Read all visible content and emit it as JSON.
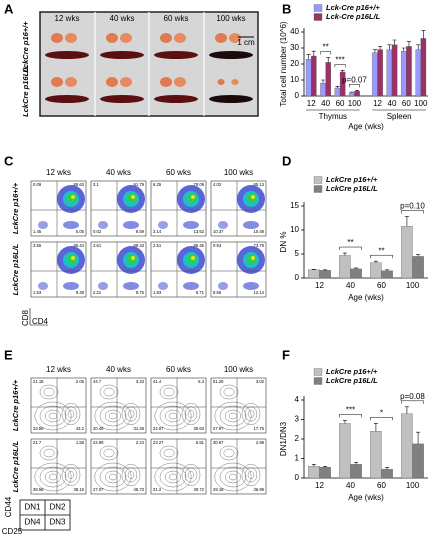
{
  "panels": {
    "labels": [
      "A",
      "B",
      "C",
      "D",
      "E",
      "F"
    ]
  },
  "panel_a": {
    "columns": [
      "12 wks",
      "40 wks",
      "60 wks",
      "100 wks"
    ],
    "rows": [
      "LckCre p16+/+",
      "LckCre p16L/L"
    ],
    "scale": "1 cm"
  },
  "panel_c": {
    "columns": [
      "12 wks",
      "40 wks",
      "60 wks",
      "100 wks"
    ],
    "rows": [
      "LckCre p16+/+",
      "LckCre p16L/L"
    ],
    "x_axis": "CD4",
    "y_axis": "CD8",
    "quadrants": [
      [
        [
          "0.09",
          "85.63",
          "1.45",
          "5.05"
        ],
        [
          "3.1",
          "91.79",
          "0.02",
          "8.59"
        ],
        [
          "6.25",
          "78.09",
          "3.14",
          "13.52"
        ],
        [
          "4.02",
          "85.13",
          "10.37",
          "10.48"
        ]
      ],
      [
        [
          "3.55",
          "85.44",
          "1.53",
          "9.48"
        ],
        [
          "2.61",
          "88.43",
          "2.21",
          "8.75"
        ],
        [
          "2.51",
          "88.45",
          "1.83",
          "6.71"
        ],
        [
          "0.53",
          "73.79",
          "8.55",
          "12.14"
        ]
      ]
    ]
  },
  "panel_e": {
    "columns": [
      "12 wks",
      "40 wks",
      "60 wks",
      "100 wks"
    ],
    "rows": [
      "LckCre p16+/+",
      "LckCre p16L/L"
    ],
    "x_axis": "CD25",
    "y_axis": "CD44",
    "key": [
      "DN1",
      "DN2",
      "DN4",
      "DN3"
    ],
    "quadrants": [
      [
        [
          "21.18",
          "2.05",
          "33.59",
          "43.2"
        ],
        [
          "44.7",
          "3.33",
          "20.49",
          "31.48"
        ],
        [
          "41.4",
          "5.3",
          "22.67",
          "30.63"
        ],
        [
          "51.26",
          "3.02",
          "27.97",
          "17.75"
        ]
      ],
      [
        [
          "21.7",
          "1.58",
          "38.56",
          "38.16"
        ],
        [
          "24.99",
          "2.24",
          "27.07",
          "45.73"
        ],
        [
          "23.27",
          "5.81",
          "31.2",
          "39.72"
        ],
        [
          "30.67",
          "2.98",
          "29.18",
          "36.99"
        ]
      ]
    ]
  },
  "chart_data": [
    {
      "type": "bar",
      "ylabel": "Total cell number (10^6)",
      "xlabel": "Age (wks)",
      "categories": [
        "12",
        "40",
        "60",
        "100",
        "12",
        "40",
        "60",
        "100"
      ],
      "groups": [
        "Thymus",
        "Spleen"
      ],
      "series": [
        {
          "name": "Lck-Cre p16+/+",
          "color": "#9999ff",
          "values": [
            23,
            8,
            5,
            2,
            27,
            29,
            28,
            29
          ],
          "errors": [
            3,
            2,
            1,
            0.5,
            2,
            3,
            2,
            3
          ]
        },
        {
          "name": "Lck-Cre p16L/L",
          "color": "#993366",
          "values": [
            25,
            21,
            15,
            3,
            29,
            32,
            31,
            36
          ],
          "errors": [
            3,
            3,
            1,
            0.5,
            2,
            3,
            3,
            5
          ]
        }
      ],
      "ylim": [
        0,
        40
      ],
      "yticks": [
        0,
        10,
        20,
        30,
        40
      ],
      "annotations": [
        "**",
        "***",
        "p=0.07"
      ],
      "legend": "top"
    },
    {
      "type": "bar",
      "ylabel": "DN %",
      "xlabel": "Age (wks)",
      "categories": [
        "12",
        "40",
        "60",
        "100"
      ],
      "series": [
        {
          "name": "LckCre p16+/+",
          "color": "#c0c0c0",
          "values": [
            1.7,
            4.7,
            3.2,
            10.8
          ],
          "errors": [
            0.1,
            0.5,
            0.3,
            2
          ]
        },
        {
          "name": "LckCre p16L/L",
          "color": "#808080",
          "values": [
            1.6,
            1.9,
            1.5,
            4.5
          ],
          "errors": [
            0.1,
            0.2,
            0.2,
            0.4
          ]
        }
      ],
      "ylim": [
        0,
        15
      ],
      "yticks": [
        0,
        5,
        10,
        15
      ],
      "annotations": [
        "**",
        "**",
        "p=0.10"
      ],
      "legend": "top"
    },
    {
      "type": "bar",
      "ylabel": "DN1/DN3",
      "xlabel": "Age (wks)",
      "categories": [
        "12",
        "40",
        "60",
        "100"
      ],
      "series": [
        {
          "name": "LckCre p16+/+",
          "color": "#c0c0c0",
          "values": [
            0.6,
            2.8,
            2.4,
            3.3
          ],
          "errors": [
            0.1,
            0.15,
            0.4,
            0.35
          ]
        },
        {
          "name": "LckCre p16L/L",
          "color": "#808080",
          "values": [
            0.55,
            0.7,
            0.45,
            1.75
          ],
          "errors": [
            0.05,
            0.1,
            0.1,
            0.6
          ]
        }
      ],
      "ylim": [
        0,
        4
      ],
      "yticks": [
        0,
        1,
        2,
        3,
        4
      ],
      "annotations": [
        "***",
        "*",
        "p=0.08"
      ],
      "legend": "top"
    }
  ]
}
